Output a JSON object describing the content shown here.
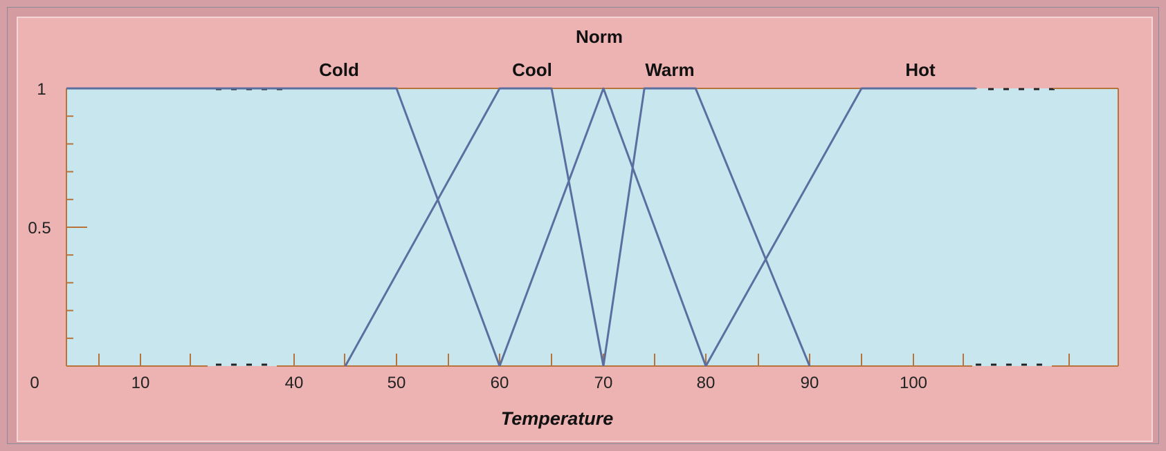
{
  "chart_data": {
    "type": "line",
    "title": "",
    "xlabel": "Temperature",
    "ylabel": "",
    "y_ticks": [
      "0",
      "0.5",
      "1"
    ],
    "x_ticks": [
      "10",
      "40",
      "50",
      "60",
      "70",
      "80",
      "90",
      "100"
    ],
    "series": [
      {
        "name": "Cold",
        "x": [
          0,
          40,
          50,
          60
        ],
        "y": [
          1,
          1,
          1,
          0
        ]
      },
      {
        "name": "Cool",
        "x": [
          45,
          60,
          65,
          70
        ],
        "y": [
          0,
          1,
          1,
          0
        ]
      },
      {
        "name": "Norm",
        "x": [
          60,
          70,
          80
        ],
        "y": [
          0,
          1,
          0
        ]
      },
      {
        "name": "Warm",
        "x": [
          70,
          74,
          79,
          90
        ],
        "y": [
          0,
          1,
          1,
          0
        ]
      },
      {
        "name": "Hot",
        "x": [
          80,
          95,
          105
        ],
        "y": [
          0,
          1,
          1
        ]
      }
    ],
    "colors": {
      "background": "#d49ba0",
      "panel": "#edb3b2",
      "plot_area": "#c8e6ed",
      "axis": "#b8733a",
      "curve": "#5a6fa0"
    }
  }
}
